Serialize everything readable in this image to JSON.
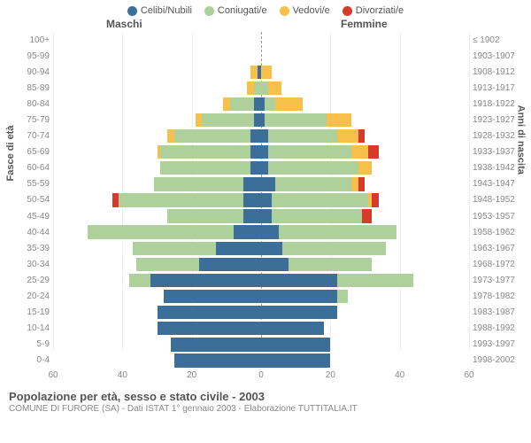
{
  "legend": [
    {
      "label": "Celibi/Nubili",
      "color": "#3b6e99"
    },
    {
      "label": "Coniugati/e",
      "color": "#aed09b"
    },
    {
      "label": "Vedovi/e",
      "color": "#f7c04a"
    },
    {
      "label": "Divorziati/e",
      "color": "#d63b2a"
    }
  ],
  "header_male": "Maschi",
  "header_female": "Femmine",
  "y_left_title": "Fasce di età",
  "y_right_title": "Anni di nascita",
  "x_max": 60,
  "x_ticks": [
    60,
    40,
    20,
    0,
    20,
    40,
    60
  ],
  "title": "Popolazione per età, sesso e stato civile - 2003",
  "subtitle": "COMUNE DI FURORE (SA) - Dati ISTAT 1° gennaio 2003 - Elaborazione TUTTITALIA.IT",
  "colors": {
    "celibi": "#3b6e99",
    "coniugati": "#aed09b",
    "vedovi": "#f7c04a",
    "divorziati": "#d63b2a",
    "grid": "#eeeeee",
    "axis": "#999999",
    "text": "#555555",
    "text_light": "#888888",
    "background": "#ffffff"
  },
  "rows": [
    {
      "age": "100+",
      "year": "≤ 1902",
      "m": {
        "c": 0,
        "co": 0,
        "v": 0,
        "d": 0
      },
      "f": {
        "c": 0,
        "co": 0,
        "v": 0,
        "d": 0
      }
    },
    {
      "age": "95-99",
      "year": "1903-1907",
      "m": {
        "c": 0,
        "co": 0,
        "v": 0,
        "d": 0
      },
      "f": {
        "c": 0,
        "co": 0,
        "v": 0,
        "d": 0
      }
    },
    {
      "age": "90-94",
      "year": "1908-1912",
      "m": {
        "c": 1,
        "co": 0,
        "v": 2,
        "d": 0
      },
      "f": {
        "c": 0,
        "co": 0,
        "v": 3,
        "d": 0
      }
    },
    {
      "age": "85-89",
      "year": "1913-1917",
      "m": {
        "c": 0,
        "co": 2,
        "v": 2,
        "d": 0
      },
      "f": {
        "c": 0,
        "co": 2,
        "v": 4,
        "d": 0
      }
    },
    {
      "age": "80-84",
      "year": "1918-1922",
      "m": {
        "c": 2,
        "co": 7,
        "v": 2,
        "d": 0
      },
      "f": {
        "c": 1,
        "co": 3,
        "v": 8,
        "d": 0
      }
    },
    {
      "age": "75-79",
      "year": "1923-1927",
      "m": {
        "c": 2,
        "co": 15,
        "v": 2,
        "d": 0
      },
      "f": {
        "c": 1,
        "co": 18,
        "v": 7,
        "d": 0
      }
    },
    {
      "age": "70-74",
      "year": "1928-1932",
      "m": {
        "c": 3,
        "co": 22,
        "v": 2,
        "d": 0
      },
      "f": {
        "c": 2,
        "co": 20,
        "v": 6,
        "d": 2
      }
    },
    {
      "age": "65-69",
      "year": "1933-1937",
      "m": {
        "c": 3,
        "co": 26,
        "v": 1,
        "d": 0
      },
      "f": {
        "c": 2,
        "co": 24,
        "v": 5,
        "d": 3
      }
    },
    {
      "age": "60-64",
      "year": "1938-1942",
      "m": {
        "c": 3,
        "co": 26,
        "v": 0,
        "d": 0
      },
      "f": {
        "c": 2,
        "co": 26,
        "v": 4,
        "d": 0
      }
    },
    {
      "age": "55-59",
      "year": "1943-1947",
      "m": {
        "c": 5,
        "co": 26,
        "v": 0,
        "d": 0
      },
      "f": {
        "c": 4,
        "co": 22,
        "v": 2,
        "d": 2
      }
    },
    {
      "age": "50-54",
      "year": "1948-1952",
      "m": {
        "c": 5,
        "co": 36,
        "v": 0,
        "d": 2
      },
      "f": {
        "c": 3,
        "co": 28,
        "v": 1,
        "d": 2
      }
    },
    {
      "age": "45-49",
      "year": "1953-1957",
      "m": {
        "c": 5,
        "co": 22,
        "v": 0,
        "d": 0
      },
      "f": {
        "c": 3,
        "co": 26,
        "v": 0,
        "d": 3
      }
    },
    {
      "age": "40-44",
      "year": "1958-1962",
      "m": {
        "c": 8,
        "co": 42,
        "v": 0,
        "d": 0
      },
      "f": {
        "c": 5,
        "co": 34,
        "v": 0,
        "d": 0
      }
    },
    {
      "age": "35-39",
      "year": "1963-1967",
      "m": {
        "c": 13,
        "co": 24,
        "v": 0,
        "d": 0
      },
      "f": {
        "c": 6,
        "co": 30,
        "v": 0,
        "d": 0
      }
    },
    {
      "age": "30-34",
      "year": "1968-1972",
      "m": {
        "c": 18,
        "co": 18,
        "v": 0,
        "d": 0
      },
      "f": {
        "c": 8,
        "co": 24,
        "v": 0,
        "d": 0
      }
    },
    {
      "age": "25-29",
      "year": "1973-1977",
      "m": {
        "c": 32,
        "co": 6,
        "v": 0,
        "d": 0
      },
      "f": {
        "c": 22,
        "co": 22,
        "v": 0,
        "d": 0
      }
    },
    {
      "age": "20-24",
      "year": "1978-1982",
      "m": {
        "c": 28,
        "co": 0,
        "v": 0,
        "d": 0
      },
      "f": {
        "c": 22,
        "co": 3,
        "v": 0,
        "d": 0
      }
    },
    {
      "age": "15-19",
      "year": "1983-1987",
      "m": {
        "c": 30,
        "co": 0,
        "v": 0,
        "d": 0
      },
      "f": {
        "c": 22,
        "co": 0,
        "v": 0,
        "d": 0
      }
    },
    {
      "age": "10-14",
      "year": "1988-1992",
      "m": {
        "c": 30,
        "co": 0,
        "v": 0,
        "d": 0
      },
      "f": {
        "c": 18,
        "co": 0,
        "v": 0,
        "d": 0
      }
    },
    {
      "age": "5-9",
      "year": "1993-1997",
      "m": {
        "c": 26,
        "co": 0,
        "v": 0,
        "d": 0
      },
      "f": {
        "c": 20,
        "co": 0,
        "v": 0,
        "d": 0
      }
    },
    {
      "age": "0-4",
      "year": "1998-2002",
      "m": {
        "c": 25,
        "co": 0,
        "v": 0,
        "d": 0
      },
      "f": {
        "c": 20,
        "co": 0,
        "v": 0,
        "d": 0
      }
    }
  ]
}
